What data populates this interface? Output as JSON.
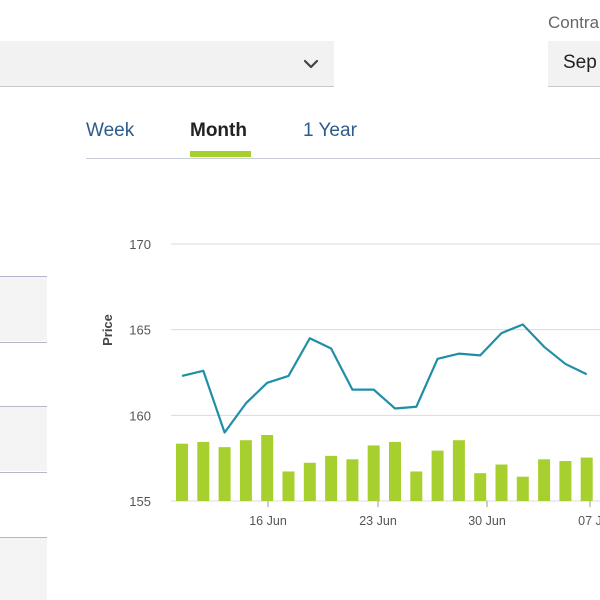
{
  "dropdown": {
    "value": "",
    "chevron_icon": "chevron-down-icon"
  },
  "contract": {
    "label": "Contra",
    "value": "Sep"
  },
  "tabs": [
    {
      "label": "Week",
      "active": false
    },
    {
      "label": "Month",
      "active": true
    },
    {
      "label": "1 Year",
      "active": false
    }
  ],
  "colors": {
    "accent": "#a7cf2e",
    "line": "#1f8fa8",
    "tab_link": "#2d5b8c",
    "grid": "#d8dae6"
  },
  "chart_data": {
    "type": "line",
    "ylabel": "Price",
    "ylim": [
      155,
      170
    ],
    "yticks": [
      "170",
      "165",
      "160",
      "155"
    ],
    "xticks": [
      "16 Jun",
      "23 Jun",
      "30 Jun",
      "07 J"
    ],
    "series": [
      {
        "values": [
          162.3,
          162.6,
          159.0,
          160.7,
          161.9,
          162.3,
          164.5,
          163.9,
          161.5,
          161.5,
          160.4,
          160.5,
          163.3,
          163.6,
          163.5,
          164.8,
          165.3,
          164.0,
          163.0,
          162.4
        ]
      }
    ],
    "volume": [
      0.33,
      0.34,
      0.31,
      0.35,
      0.38,
      0.17,
      0.22,
      0.26,
      0.24,
      0.32,
      0.34,
      0.17,
      0.29,
      0.35,
      0.16,
      0.21,
      0.14,
      0.24,
      0.23,
      0.25
    ]
  }
}
